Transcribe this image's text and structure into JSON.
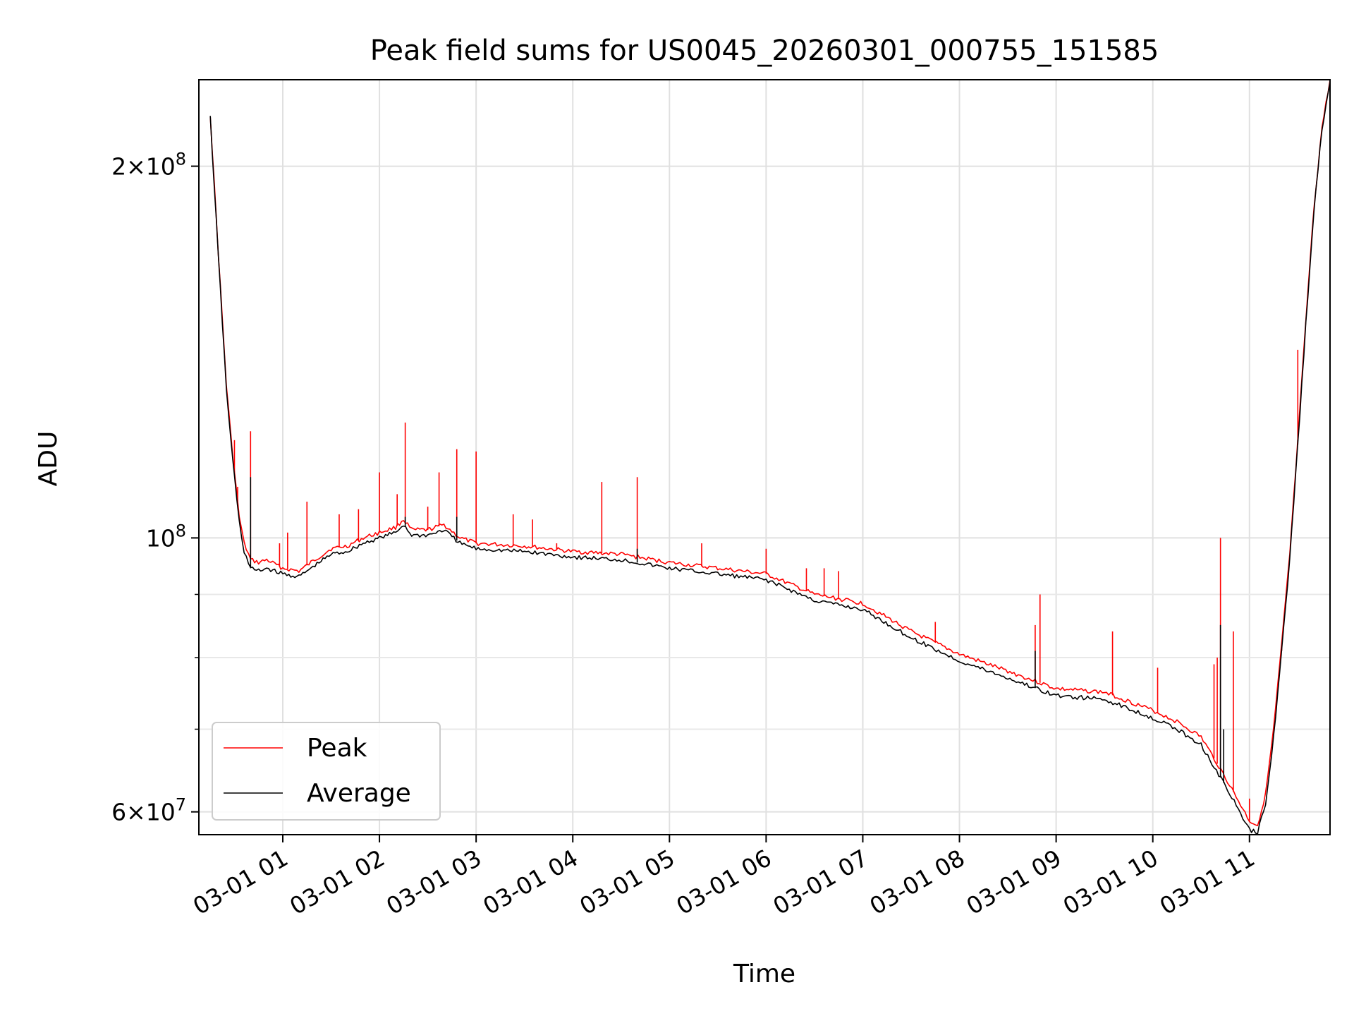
{
  "chart_data": {
    "type": "line",
    "title": "Peak field sums for US0045_20260301_000755_151585",
    "xlabel": "Time",
    "ylabel": "ADU",
    "yscale": "log",
    "grid": true,
    "legend_position": "lower-left",
    "xlim": [
      "2026-03-01 00:07:55",
      "2026-03-01 11:50"
    ],
    "ylim": [
      57500000,
      235000000
    ],
    "x_ticks": [
      "03-01 01",
      "03-01 02",
      "03-01 03",
      "03-01 04",
      "03-01 05",
      "03-01 06",
      "03-01 07",
      "03-01 08",
      "03-01 09",
      "03-01 10",
      "03-01 11"
    ],
    "y_ticks": [
      {
        "value": 200000000,
        "mantissa": "2",
        "exponent": "8"
      },
      {
        "value": 100000000,
        "mantissa": "",
        "exponent": "8"
      },
      {
        "value": 60000000,
        "mantissa": "6",
        "exponent": "7"
      }
    ],
    "y_minor_ticks": [
      70000000,
      80000000,
      90000000
    ],
    "series": [
      {
        "name": "Peak",
        "color": "#ff0000",
        "x": [
          "2026-03-01 00:15",
          "2026-03-01 00:20",
          "2026-03-01 00:25",
          "2026-03-01 00:28",
          "2026-03-01 00:30",
          "2026-03-01 00:33",
          "2026-03-01 00:36",
          "2026-03-01 00:40",
          "2026-03-01 00:45",
          "2026-03-01 00:50",
          "2026-03-01 01:00",
          "2026-03-01 01:10",
          "2026-03-01 01:20",
          "2026-03-01 01:30",
          "2026-03-01 01:40",
          "2026-03-01 01:50",
          "2026-03-01 02:00",
          "2026-03-01 02:10",
          "2026-03-01 02:15",
          "2026-03-01 02:20",
          "2026-03-01 02:30",
          "2026-03-01 02:40",
          "2026-03-01 02:50",
          "2026-03-01 03:00",
          "2026-03-01 03:30",
          "2026-03-01 04:00",
          "2026-03-01 04:30",
          "2026-03-01 05:00",
          "2026-03-01 05:30",
          "2026-03-01 06:00",
          "2026-03-01 06:30",
          "2026-03-01 07:00",
          "2026-03-01 07:30",
          "2026-03-01 08:00",
          "2026-03-01 08:18",
          "2026-03-01 08:30",
          "2026-03-01 09:00",
          "2026-03-01 09:30",
          "2026-03-01 10:00",
          "2026-03-01 10:15",
          "2026-03-01 10:30",
          "2026-03-01 10:45",
          "2026-03-01 11:00",
          "2026-03-01 11:05",
          "2026-03-01 11:10",
          "2026-03-01 11:15",
          "2026-03-01 11:20",
          "2026-03-01 11:25",
          "2026-03-01 11:30",
          "2026-03-01 11:35",
          "2026-03-01 11:40",
          "2026-03-01 11:45",
          "2026-03-01 11:50"
        ],
        "y": [
          220000000,
          170000000,
          133000000,
          120000000,
          113000000,
          104000000,
          99000000,
          96000000,
          95500000,
          96000000,
          94500000,
          94000000,
          96000000,
          98000000,
          98500000,
          100000000,
          101000000,
          102000000,
          103500000,
          101500000,
          101500000,
          102500000,
          100000000,
          99000000,
          98500000,
          97500000,
          97000000,
          95500000,
          94500000,
          93500000,
          90000000,
          88500000,
          84000000,
          80500000,
          79000000,
          78000000,
          75500000,
          75000000,
          72500000,
          71000000,
          69000000,
          64000000,
          59000000,
          58500000,
          62000000,
          70000000,
          82000000,
          97000000,
          120000000,
          150000000,
          185000000,
          215000000,
          235000000
        ],
        "spikes": [
          {
            "x": "2026-03-01 00:30",
            "y": 120000000
          },
          {
            "x": "2026-03-01 00:32",
            "y": 110000000
          },
          {
            "x": "2026-03-01 00:40",
            "y": 122000000
          },
          {
            "x": "2026-03-01 00:58",
            "y": 99000000
          },
          {
            "x": "2026-03-01 01:03",
            "y": 101000000
          },
          {
            "x": "2026-03-01 01:15",
            "y": 107000000
          },
          {
            "x": "2026-03-01 01:35",
            "y": 104500000
          },
          {
            "x": "2026-03-01 01:47",
            "y": 105500000
          },
          {
            "x": "2026-03-01 02:00",
            "y": 113000000
          },
          {
            "x": "2026-03-01 02:11",
            "y": 108500000
          },
          {
            "x": "2026-03-01 02:16",
            "y": 124000000
          },
          {
            "x": "2026-03-01 02:30",
            "y": 106000000
          },
          {
            "x": "2026-03-01 02:37",
            "y": 113000000
          },
          {
            "x": "2026-03-01 02:48",
            "y": 118000000
          },
          {
            "x": "2026-03-01 03:00",
            "y": 117500000
          },
          {
            "x": "2026-03-01 03:23",
            "y": 104500000
          },
          {
            "x": "2026-03-01 03:35",
            "y": 103500000
          },
          {
            "x": "2026-03-01 03:50",
            "y": 99000000
          },
          {
            "x": "2026-03-01 04:18",
            "y": 111000000
          },
          {
            "x": "2026-03-01 04:40",
            "y": 112000000
          },
          {
            "x": "2026-03-01 05:20",
            "y": 99000000
          },
          {
            "x": "2026-03-01 06:00",
            "y": 98000000
          },
          {
            "x": "2026-03-01 06:25",
            "y": 94500000
          },
          {
            "x": "2026-03-01 06:36",
            "y": 94500000
          },
          {
            "x": "2026-03-01 06:45",
            "y": 94000000
          },
          {
            "x": "2026-03-01 07:45",
            "y": 85500000
          },
          {
            "x": "2026-03-01 08:47",
            "y": 85000000
          },
          {
            "x": "2026-03-01 08:50",
            "y": 90000000
          },
          {
            "x": "2026-03-01 09:35",
            "y": 84000000
          },
          {
            "x": "2026-03-01 09:63",
            "y": 78500000
          },
          {
            "x": "2026-03-01 10:38",
            "y": 79000000
          },
          {
            "x": "2026-03-01 10:40",
            "y": 80000000
          },
          {
            "x": "2026-03-01 10:42",
            "y": 100000000
          },
          {
            "x": "2026-03-01 10:50",
            "y": 84000000
          },
          {
            "x": "2026-03-01 11:00",
            "y": 61500000
          },
          {
            "x": "2026-03-01 11:20",
            "y": 81000000
          },
          {
            "x": "2026-03-01 11:30",
            "y": 142000000
          }
        ]
      },
      {
        "name": "Average",
        "color": "#000000",
        "x": [
          "2026-03-01 00:15",
          "2026-03-01 00:20",
          "2026-03-01 00:25",
          "2026-03-01 00:28",
          "2026-03-01 00:30",
          "2026-03-01 00:33",
          "2026-03-01 00:36",
          "2026-03-01 00:40",
          "2026-03-01 00:45",
          "2026-03-01 00:50",
          "2026-03-01 01:00",
          "2026-03-01 01:10",
          "2026-03-01 01:20",
          "2026-03-01 01:30",
          "2026-03-01 01:40",
          "2026-03-01 01:50",
          "2026-03-01 02:00",
          "2026-03-01 02:10",
          "2026-03-01 02:15",
          "2026-03-01 02:20",
          "2026-03-01 02:30",
          "2026-03-01 02:40",
          "2026-03-01 02:50",
          "2026-03-01 03:00",
          "2026-03-01 03:30",
          "2026-03-01 04:00",
          "2026-03-01 04:30",
          "2026-03-01 05:00",
          "2026-03-01 05:30",
          "2026-03-01 06:00",
          "2026-03-01 06:30",
          "2026-03-01 07:00",
          "2026-03-01 07:30",
          "2026-03-01 08:00",
          "2026-03-01 08:18",
          "2026-03-01 08:30",
          "2026-03-01 09:00",
          "2026-03-01 09:30",
          "2026-03-01 10:00",
          "2026-03-01 10:15",
          "2026-03-01 10:30",
          "2026-03-01 10:45",
          "2026-03-01 11:00",
          "2026-03-01 11:05",
          "2026-03-01 11:10",
          "2026-03-01 11:15",
          "2026-03-01 11:20",
          "2026-03-01 11:25",
          "2026-03-01 11:30",
          "2026-03-01 11:35",
          "2026-03-01 11:40",
          "2026-03-01 11:45",
          "2026-03-01 11:50"
        ],
        "y": [
          219000000,
          169000000,
          132000000,
          119000000,
          112000000,
          103000000,
          97500000,
          94500000,
          94000000,
          94500000,
          93500000,
          93000000,
          95000000,
          97000000,
          97500000,
          99000000,
          100000000,
          101000000,
          102500000,
          100500000,
          100500000,
          101500000,
          99000000,
          98000000,
          97500000,
          96500000,
          96000000,
          94500000,
          93500000,
          92500000,
          89000000,
          87500000,
          83000000,
          79500000,
          78000000,
          77000000,
          74500000,
          74000000,
          71500000,
          70000000,
          68000000,
          63000000,
          58000000,
          57700000,
          61000000,
          69000000,
          81000000,
          96000000,
          119000000,
          149000000,
          184000000,
          214000000,
          234000000
        ],
        "spikes": [
          {
            "x": "2026-03-01 00:40",
            "y": 112000000
          },
          {
            "x": "2026-03-01 02:16",
            "y": 104000000
          },
          {
            "x": "2026-03-01 02:48",
            "y": 104000000
          },
          {
            "x": "2026-03-01 04:40",
            "y": 98000000
          },
          {
            "x": "2026-03-01 08:47",
            "y": 81000000
          },
          {
            "x": "2026-03-01 10:42",
            "y": 85000000
          },
          {
            "x": "2026-03-01 10:44",
            "y": 70000000
          },
          {
            "x": "2026-03-01 11:30",
            "y": 120000000
          }
        ]
      }
    ]
  }
}
